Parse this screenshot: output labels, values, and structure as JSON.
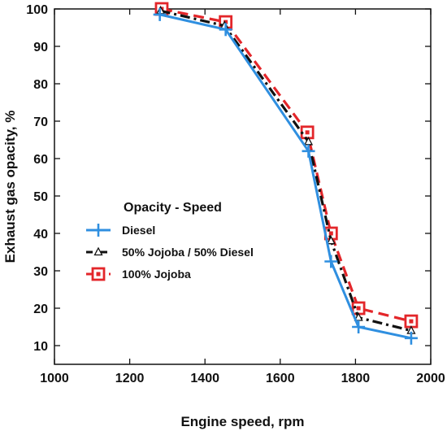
{
  "chart_data": {
    "type": "line",
    "xlabel": "Engine speed, rpm",
    "ylabel": "Exhaust gas opacity, %",
    "xlim": [
      1000,
      2000
    ],
    "ylim": [
      5,
      100
    ],
    "xticks": [
      1000,
      1200,
      1400,
      1600,
      1800,
      2000
    ],
    "yticks": [
      10,
      20,
      30,
      40,
      50,
      60,
      70,
      80,
      90,
      100
    ],
    "grid": false,
    "legend": {
      "title": "Opacity - Speed",
      "placement": "center-left"
    },
    "series": [
      {
        "name": "Diesel",
        "color": "#2f8fe0",
        "line_style": "solid",
        "marker": "plus",
        "x": [
          1280,
          1455,
          1675,
          1735,
          1808,
          1948
        ],
        "y": [
          98.5,
          94.5,
          62,
          32.5,
          15,
          12
        ]
      },
      {
        "name": "50% Jojoba / 50% Diesel",
        "color": "#111111",
        "line_style": "dash-dot",
        "marker": "triangle",
        "x": [
          1282,
          1452,
          1675,
          1735,
          1808,
          1948
        ],
        "y": [
          99.5,
          95.5,
          64.5,
          38,
          17.5,
          14
        ]
      },
      {
        "name": "100% Jojoba",
        "color": "#e3262a",
        "line_style": "dashed",
        "marker": "square",
        "x": [
          1285,
          1455,
          1672,
          1735,
          1808,
          1948
        ],
        "y": [
          100,
          96.5,
          67,
          40,
          20,
          16.5
        ]
      }
    ]
  }
}
